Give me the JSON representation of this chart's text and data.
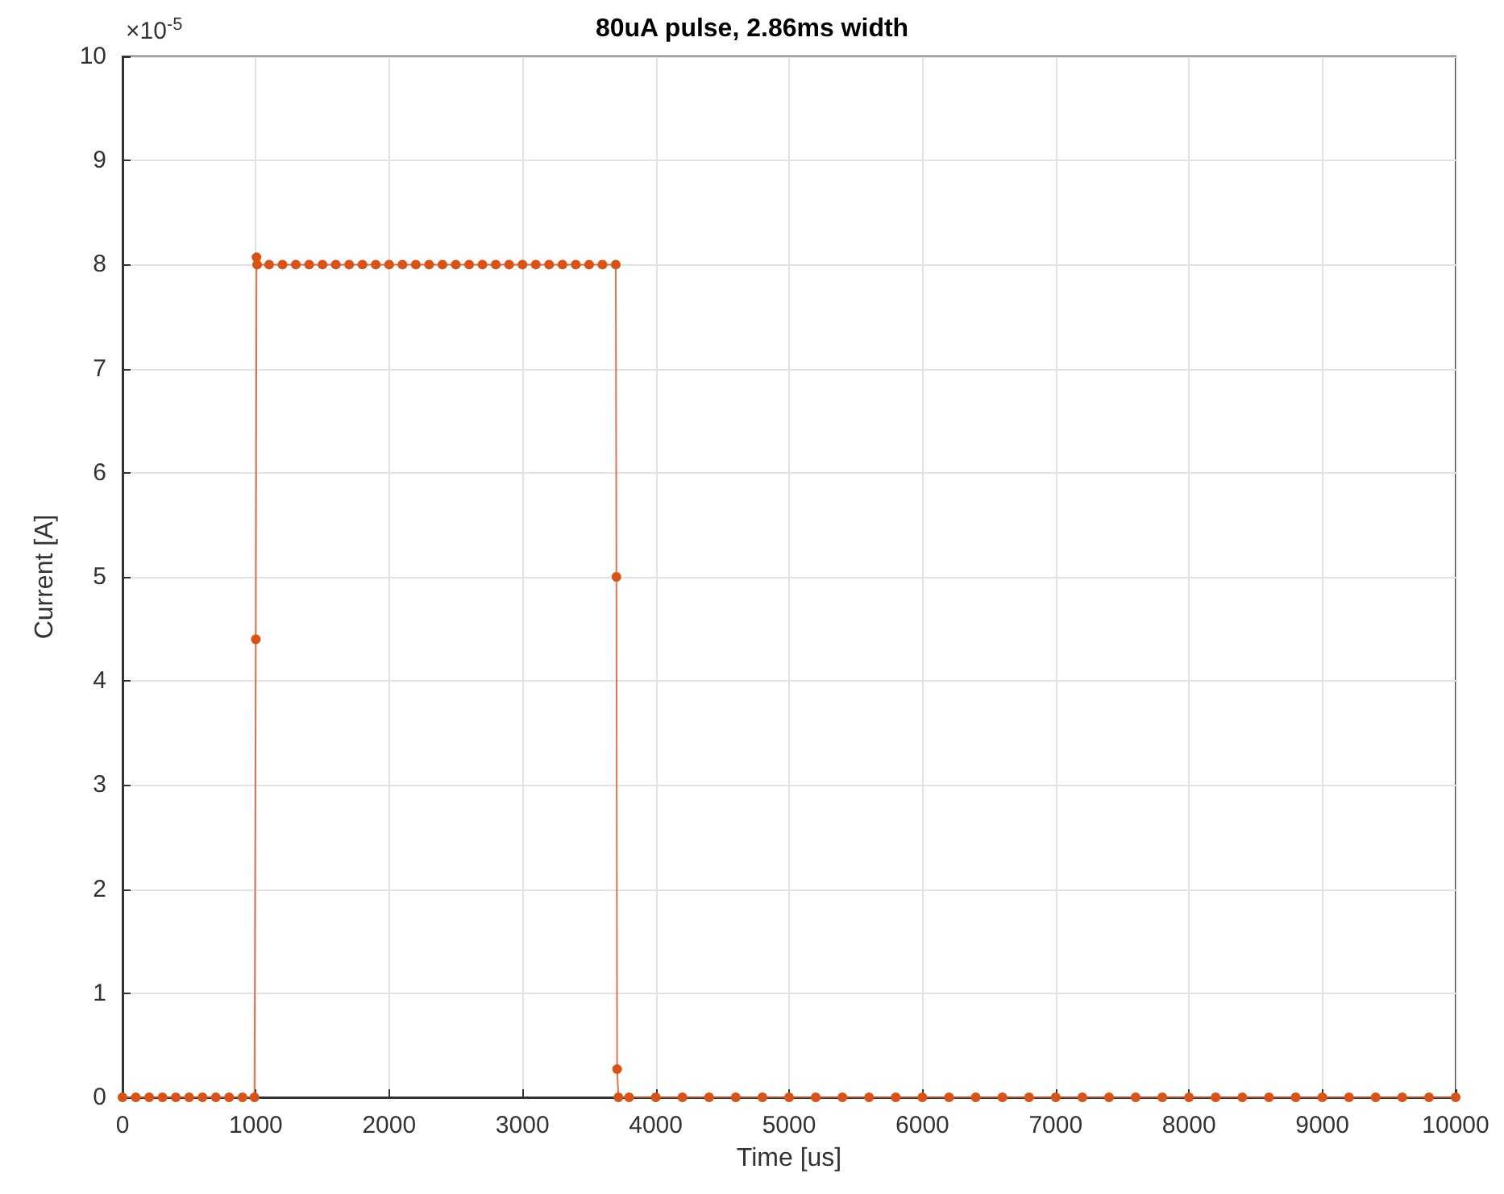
{
  "chart_data": {
    "type": "line",
    "title": "80uA pulse, 2.86ms width",
    "xlabel": "Time [us]",
    "ylabel": "Current [A]",
    "annotations": [
      "×10$^{-5}$"
    ],
    "series": [
      {
        "color": "#d95319",
        "x": [
          0,
          100,
          200,
          300,
          400,
          500,
          600,
          700,
          800,
          900,
          990,
          1000,
          1005,
          1010,
          1100,
          1200,
          1300,
          1400,
          1500,
          1600,
          1700,
          1800,
          1900,
          2000,
          2100,
          2200,
          2300,
          2400,
          2500,
          2600,
          2700,
          2800,
          2900,
          3000,
          3100,
          3200,
          3300,
          3400,
          3500,
          3600,
          3700,
          3705,
          3710,
          3720,
          3800,
          4000,
          4200,
          4400,
          4600,
          4800,
          5000,
          5200,
          5400,
          5600,
          5800,
          6000,
          6200,
          6400,
          6600,
          6800,
          7000,
          7200,
          7400,
          7600,
          7800,
          8000,
          8200,
          8400,
          8600,
          8800,
          9000,
          9200,
          9400,
          9600,
          9800,
          10000
        ],
        "values": [
          0,
          0,
          0,
          0,
          0,
          0,
          0,
          0,
          0,
          0,
          0,
          4.4,
          8.07,
          8.0,
          8.0,
          8.0,
          8.0,
          8.0,
          8.0,
          8.0,
          8.0,
          8.0,
          8.0,
          8.0,
          8.0,
          8.0,
          8.0,
          8.0,
          8.0,
          8.0,
          8.0,
          8.0,
          8.0,
          8.0,
          8.0,
          8.0,
          8.0,
          8.0,
          8.0,
          8.0,
          8.0,
          5.0,
          0.27,
          0,
          0,
          0,
          0,
          0,
          0,
          0,
          0,
          0,
          0,
          0,
          0,
          0,
          0,
          0,
          0,
          0,
          0,
          0,
          0,
          0,
          0,
          0,
          0,
          0,
          0,
          0,
          0,
          0,
          0,
          0,
          0,
          0
        ]
      }
    ],
    "xlim": [
      0,
      10000
    ],
    "xticks": [
      0,
      1000,
      2000,
      3000,
      4000,
      5000,
      6000,
      7000,
      8000,
      9000,
      10000
    ],
    "ylim": [
      0,
      10
    ],
    "yticks": [
      0,
      1,
      2,
      3,
      4,
      5,
      6,
      7,
      8,
      9,
      10
    ],
    "grid": true,
    "marker": "circle",
    "line_style": "solid"
  }
}
